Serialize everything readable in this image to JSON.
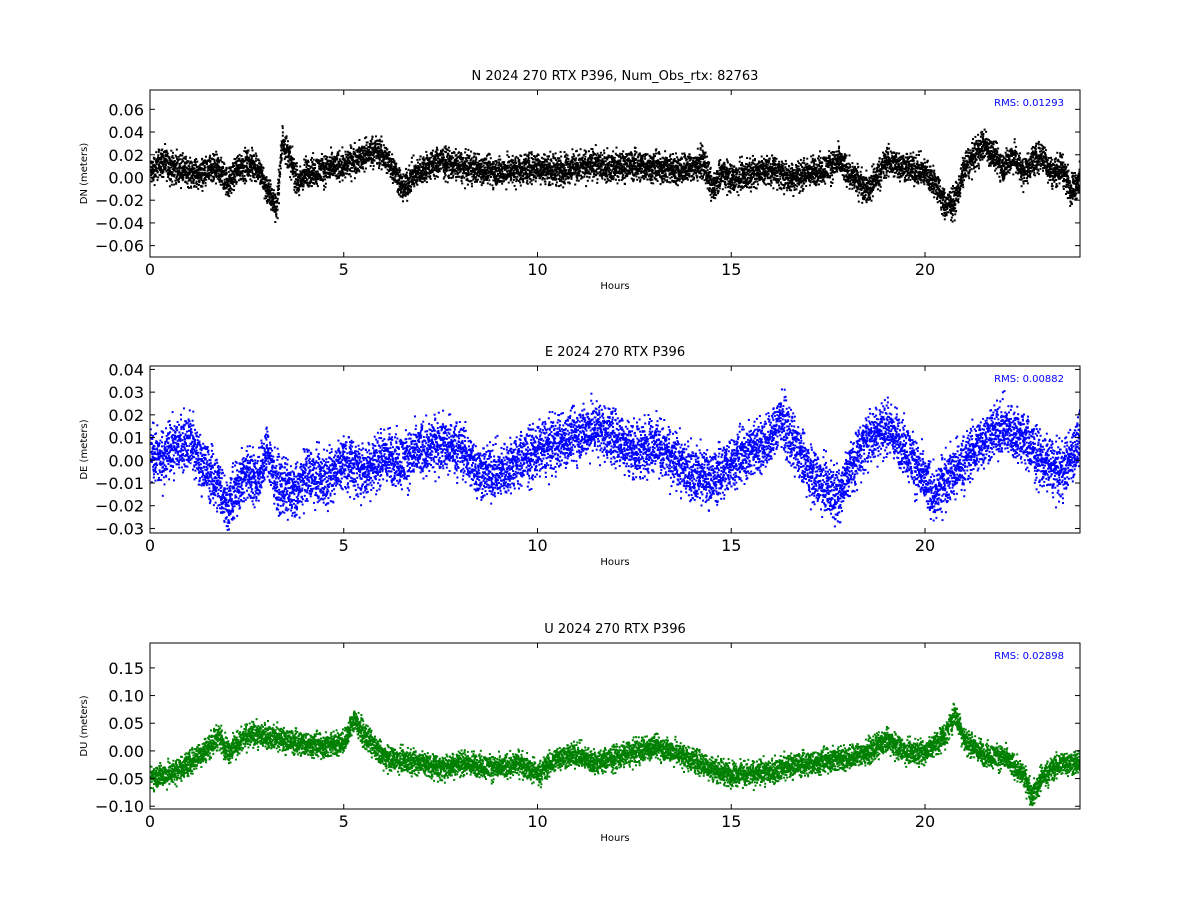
{
  "chart_data": [
    {
      "type": "scatter",
      "title": "N 2024 270 RTX  P396, Num_Obs_rtx: 82763",
      "xlabel": "Hours",
      "ylabel": "DN (meters)",
      "xlim": [
        0,
        24
      ],
      "ylim": [
        -0.07,
        0.077
      ],
      "xticks": [
        "0",
        "5",
        "10",
        "15",
        "20"
      ],
      "xtick_values": [
        0,
        5,
        10,
        15,
        20
      ],
      "yticks": [
        "−0.06",
        "−0.04",
        "−0.02",
        "0.00",
        "0.02",
        "0.04",
        "0.06"
      ],
      "ytick_values": [
        -0.06,
        -0.04,
        -0.02,
        0,
        0.02,
        0.04,
        0.06
      ],
      "annotation": "RMS:  0.01293",
      "color": "#000000",
      "grid": false,
      "series": [
        {
          "x": [
            0,
            0.25,
            0.5,
            0.75,
            1,
            1.25,
            1.5,
            1.75,
            2,
            2.25,
            2.5,
            2.75,
            3,
            3.25,
            3.4,
            3.6,
            3.8,
            4,
            4.5,
            5,
            5.5,
            5.75,
            6,
            6.25,
            6.5,
            6.75,
            7,
            7.25,
            7.5,
            8,
            8.5,
            9,
            9.5,
            10,
            10.5,
            11,
            11.5,
            12,
            12.5,
            13,
            13.5,
            14,
            14.25,
            14.5,
            14.75,
            15,
            15.5,
            16,
            16.5,
            17,
            17.5,
            17.75,
            18,
            18.5,
            19,
            19.5,
            20,
            20.25,
            20.5,
            20.75,
            21,
            21.25,
            21.5,
            21.75,
            22,
            22.25,
            22.5,
            22.75,
            23,
            23.25,
            23.5,
            23.75,
            24
          ],
          "y": [
            0.005,
            0.015,
            0.01,
            0.008,
            0.005,
            0.004,
            0.006,
            0.008,
            -0.005,
            0.01,
            0.012,
            0.01,
            -0.01,
            -0.025,
            0.035,
            0.015,
            -0.005,
            0.005,
            0.008,
            0.012,
            0.02,
            0.025,
            0.02,
            0.01,
            -0.01,
            0.002,
            0.008,
            0.012,
            0.015,
            0.01,
            0.008,
            0.006,
            0.008,
            0.01,
            0.008,
            0.01,
            0.012,
            0.01,
            0.012,
            0.01,
            0.008,
            0.01,
            0.015,
            -0.01,
            0.005,
            0.0,
            0.005,
            0.008,
            0.0,
            0.005,
            0.01,
            0.015,
            0.005,
            -0.01,
            0.015,
            0.01,
            0.005,
            -0.005,
            -0.025,
            -0.02,
            0.01,
            0.02,
            0.03,
            0.02,
            0.01,
            0.02,
            0.005,
            0.015,
            0.02,
            0.005,
            0.01,
            -0.01,
            0.0
          ],
          "spread": 0.012
        }
      ]
    },
    {
      "type": "scatter",
      "title": "E 2024 270 RTX  P396",
      "xlabel": "Hours",
      "ylabel": "DE (meters)",
      "xlim": [
        0,
        24
      ],
      "ylim": [
        -0.032,
        0.0415
      ],
      "xticks": [
        "0",
        "5",
        "10",
        "15",
        "20"
      ],
      "xtick_values": [
        0,
        5,
        10,
        15,
        20
      ],
      "yticks": [
        "−0.03",
        "−0.02",
        "−0.01",
        "0.00",
        "0.01",
        "0.02",
        "0.03",
        "0.04"
      ],
      "ytick_values": [
        -0.03,
        -0.02,
        -0.01,
        0,
        0.01,
        0.02,
        0.03,
        0.04
      ],
      "annotation": "RMS:  0.00882",
      "color": "#0000ff",
      "grid": false,
      "series": [
        {
          "x": [
            0,
            0.25,
            0.5,
            0.75,
            1,
            1.25,
            1.5,
            1.75,
            2,
            2.25,
            2.5,
            2.75,
            3,
            3.25,
            3.5,
            3.75,
            4,
            4.5,
            5,
            5.5,
            6,
            6.5,
            7,
            7.5,
            8,
            8.5,
            9,
            9.5,
            10,
            10.5,
            11,
            11.5,
            12,
            12.5,
            13,
            13.5,
            14,
            14.5,
            15,
            15.5,
            16,
            16.25,
            16.5,
            17,
            17.5,
            17.75,
            18,
            18.5,
            19,
            19.5,
            20,
            20.25,
            20.5,
            21,
            21.5,
            22,
            22.5,
            23,
            23.5,
            24
          ],
          "y": [
            0.005,
            0.0,
            0.005,
            0.008,
            0.01,
            0.0,
            -0.005,
            -0.01,
            -0.02,
            -0.01,
            -0.005,
            -0.008,
            0.005,
            -0.01,
            -0.012,
            -0.015,
            -0.005,
            -0.008,
            0.0,
            -0.005,
            0.002,
            0.0,
            0.005,
            0.008,
            0.005,
            -0.005,
            -0.005,
            0.0,
            0.005,
            0.008,
            0.012,
            0.015,
            0.01,
            0.005,
            0.008,
            0.0,
            -0.005,
            -0.008,
            0.0,
            0.005,
            0.01,
            0.02,
            0.01,
            -0.005,
            -0.012,
            -0.015,
            -0.005,
            0.01,
            0.015,
            0.005,
            -0.01,
            -0.015,
            -0.008,
            0.0,
            0.01,
            0.015,
            0.01,
            0.0,
            -0.005,
            0.01
          ],
          "spread": 0.011
        }
      ]
    },
    {
      "type": "scatter",
      "title": "U 2024 270 RTX  P396",
      "xlabel": "Hours",
      "ylabel": "DU (meters)",
      "xlim": [
        0,
        24
      ],
      "ylim": [
        -0.105,
        0.195
      ],
      "xticks": [
        "0",
        "5",
        "10",
        "15",
        "20"
      ],
      "xtick_values": [
        0,
        5,
        10,
        15,
        20
      ],
      "yticks": [
        "−0.10",
        "−0.05",
        "0.00",
        "0.05",
        "0.10",
        "0.15"
      ],
      "ytick_values": [
        -0.1,
        -0.05,
        0,
        0.05,
        0.1,
        0.15
      ],
      "annotation": "RMS:  0.02898",
      "color": "#008000",
      "grid": false,
      "series": [
        {
          "x": [
            0,
            0.5,
            1,
            1.5,
            1.75,
            2,
            2.5,
            3,
            3.5,
            4,
            4.5,
            5,
            5.25,
            5.5,
            6,
            6.5,
            7,
            7.5,
            8,
            8.5,
            9,
            9.5,
            10,
            10.5,
            11,
            11.5,
            12,
            12.5,
            13,
            13.5,
            14,
            14.5,
            15,
            15.5,
            16,
            16.5,
            17,
            17.5,
            18,
            18.5,
            19,
            19.5,
            20,
            20.5,
            20.75,
            21,
            21.5,
            22,
            22.5,
            22.75,
            23,
            23.5,
            24
          ],
          "y": [
            -0.045,
            -0.04,
            -0.02,
            0.01,
            0.03,
            0.0,
            0.03,
            0.03,
            0.02,
            0.015,
            0.01,
            0.02,
            0.06,
            0.03,
            -0.01,
            -0.015,
            -0.02,
            -0.03,
            -0.02,
            -0.025,
            -0.03,
            -0.02,
            -0.04,
            -0.01,
            -0.005,
            -0.02,
            -0.01,
            0.0,
            0.01,
            0.0,
            -0.015,
            -0.03,
            -0.04,
            -0.04,
            -0.035,
            -0.025,
            -0.02,
            -0.015,
            -0.01,
            0.0,
            0.02,
            0.0,
            0.0,
            0.03,
            0.07,
            0.02,
            -0.005,
            -0.01,
            -0.04,
            -0.08,
            -0.045,
            -0.02,
            -0.02
          ],
          "spread": 0.02
        }
      ]
    }
  ]
}
